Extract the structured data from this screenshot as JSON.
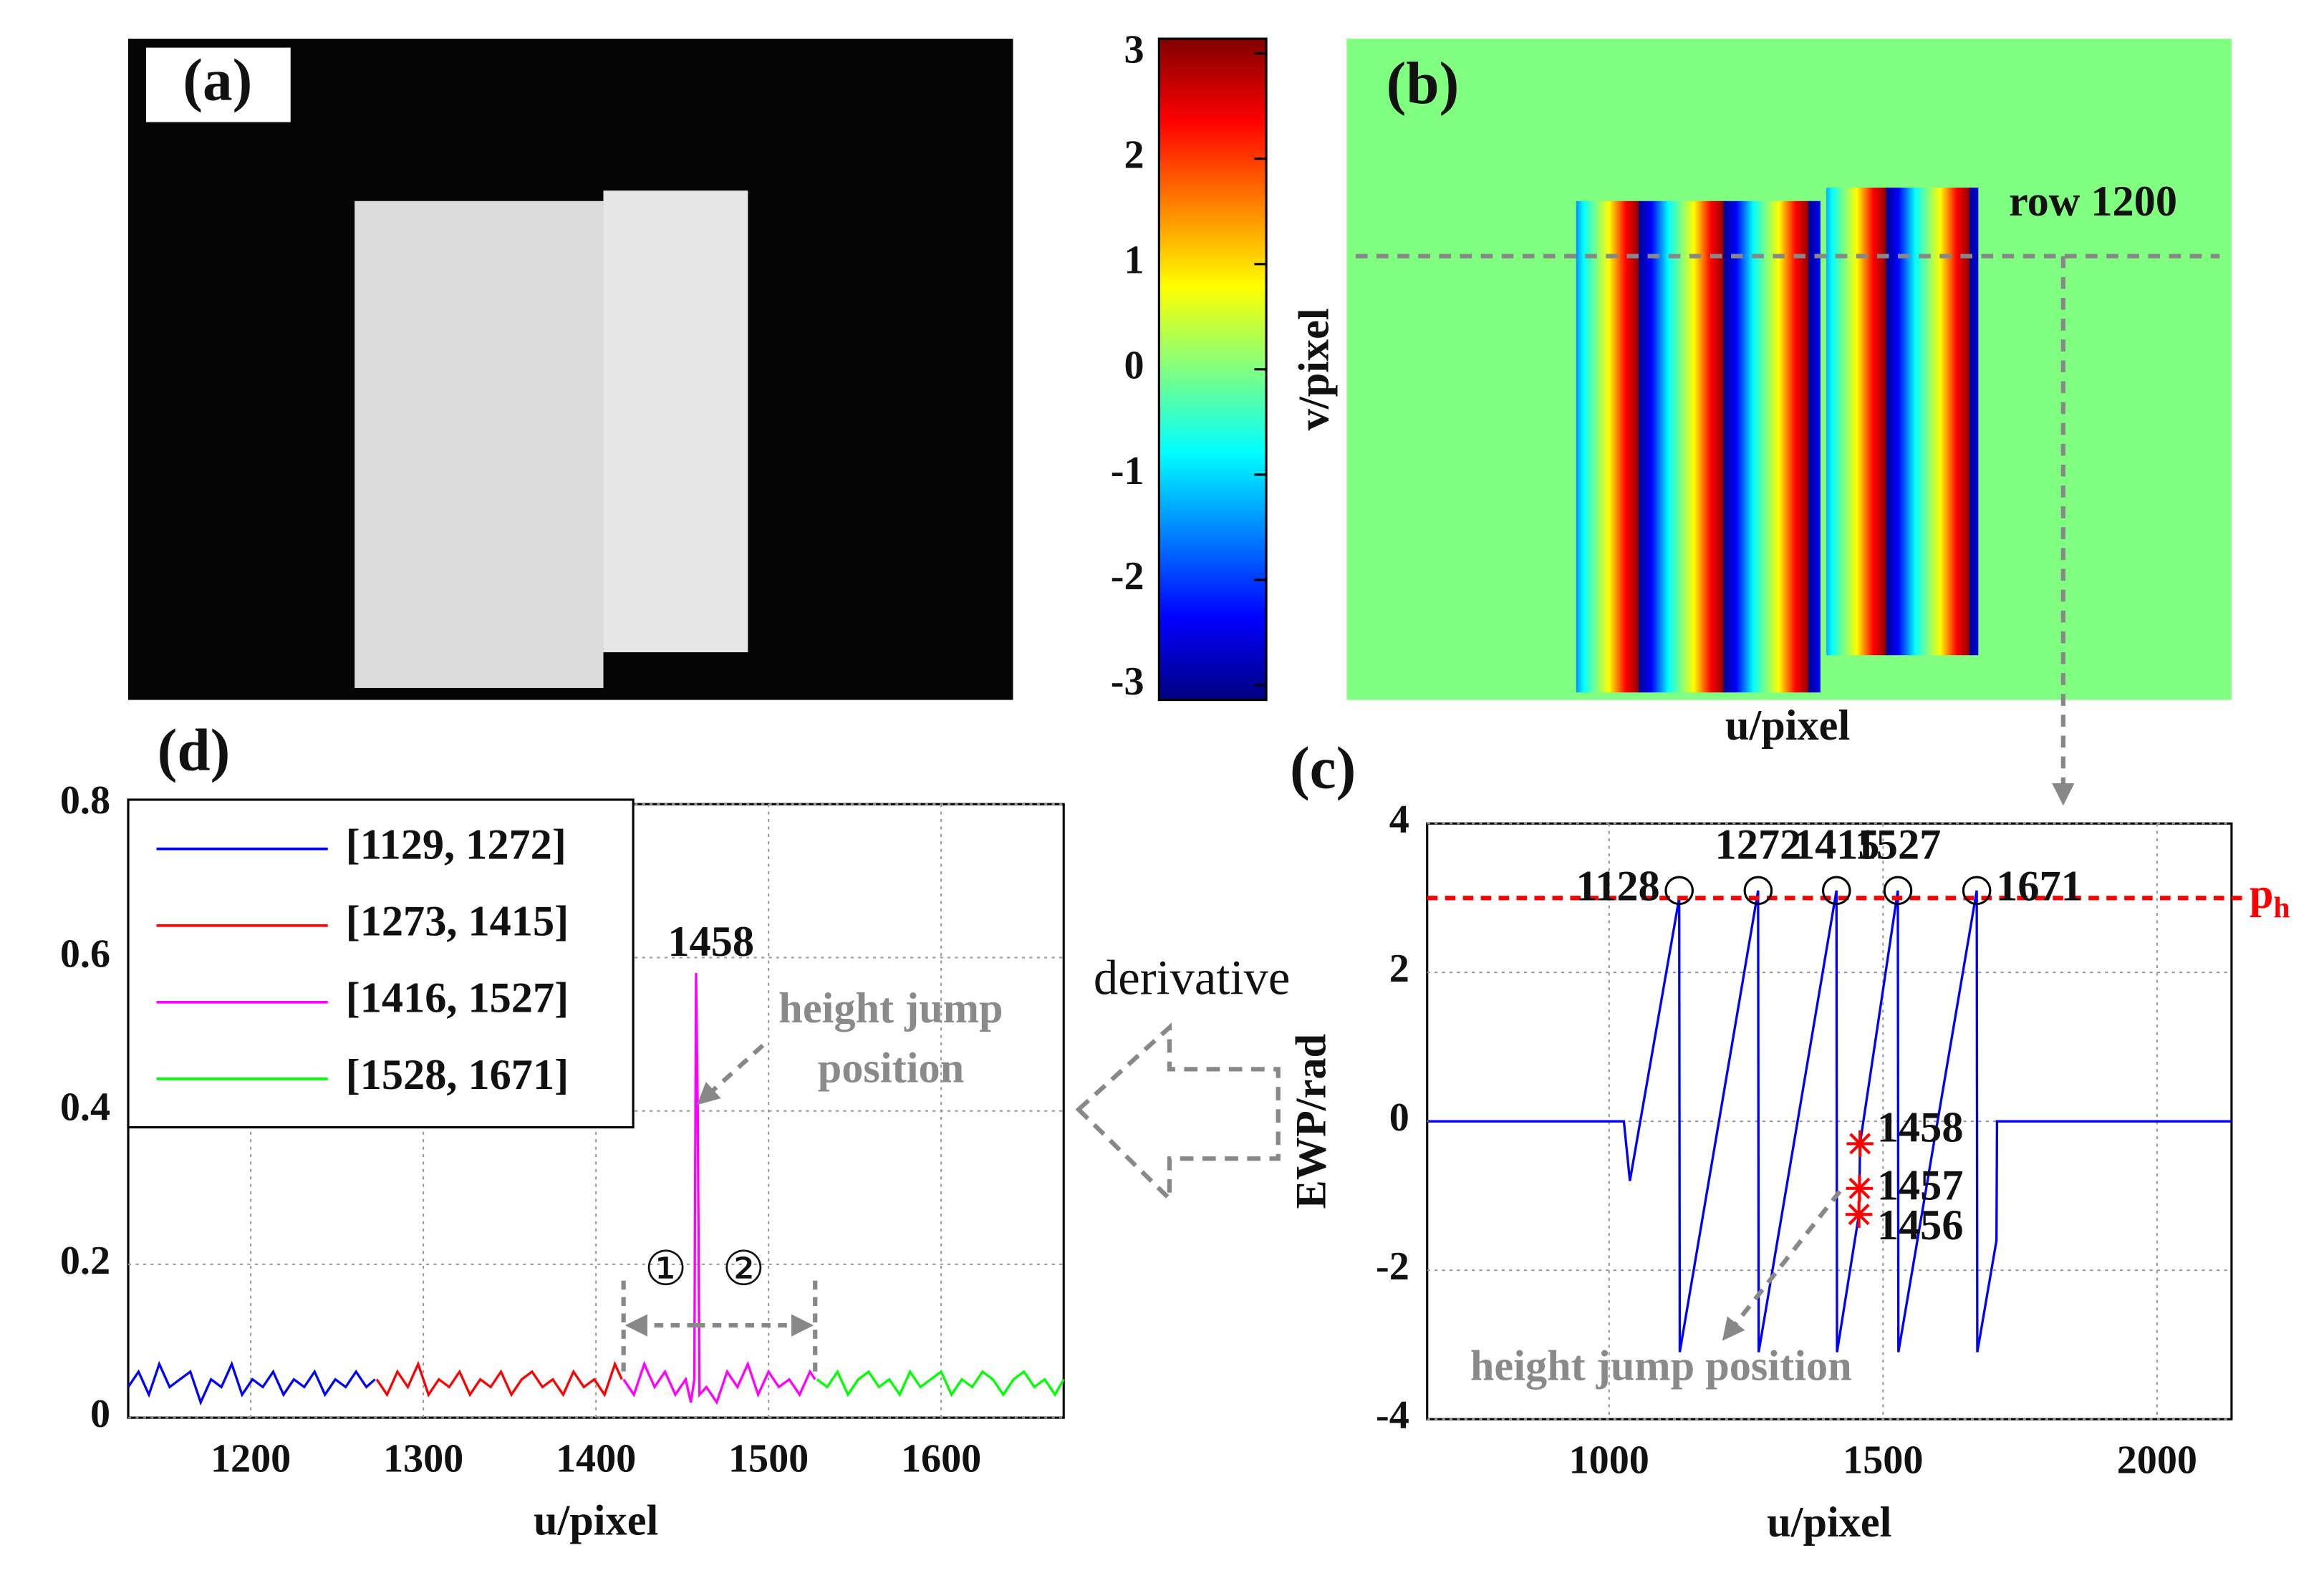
{
  "panel_a": {
    "label": "(a)"
  },
  "panel_b": {
    "label": "(b)",
    "row_label": "row 1200",
    "xlabel": "u/pixel",
    "ylabel": "v/pixel"
  },
  "colorbar": {
    "ylim": [
      -3.14,
      3.14
    ],
    "yticks": [
      3,
      2,
      1,
      0,
      -1,
      -2,
      -3
    ],
    "colormap": "jet"
  },
  "arrow_label": "derivative",
  "chart_data": [
    {
      "type": "line",
      "label": "(c)",
      "xlabel": "u/pixel",
      "ylabel": "EWP/rad",
      "xlim": [
        668,
        2136
      ],
      "ylim": [
        -4,
        4
      ],
      "xticks": [
        1000,
        1500,
        2000
      ],
      "yticks": [
        -4,
        -2,
        0,
        2,
        4
      ],
      "grid": true,
      "series": [
        {
          "color": "#0000ff",
          "x": [
            670,
            1027,
            1038,
            1128,
            1129,
            1272,
            1273,
            1415,
            1416,
            1456,
            1457,
            1458,
            1527,
            1528,
            1671,
            1672,
            1707,
            1708,
            2136
          ],
          "values": [
            0,
            0,
            -0.8,
            3.0,
            -3.1,
            3.1,
            -3.1,
            3.1,
            -3.1,
            -1.25,
            -0.9,
            -0.3,
            3.1,
            -3.1,
            3.1,
            -3.1,
            -1.6,
            0,
            0
          ]
        }
      ],
      "threshold": {
        "value": 3.0,
        "color": "#ff0000",
        "label": "p",
        "label_sub": "h"
      },
      "markers": {
        "x": [
          1128,
          1272,
          1415,
          1527,
          1671
        ],
        "values": [
          3.1,
          3.1,
          3.1,
          3.1,
          3.1
        ]
      },
      "stars": {
        "x": [
          1458,
          1457,
          1456
        ],
        "values": [
          -0.3,
          -0.9,
          -1.25
        ],
        "color": "#ff0000"
      },
      "annotation": "height jump position"
    },
    {
      "type": "line",
      "label": "(d)",
      "xlabel": "u/pixel",
      "xlim": [
        1129,
        1671
      ],
      "ylim": [
        0,
        0.8
      ],
      "xticks": [
        1200,
        1300,
        1400,
        1500,
        1600
      ],
      "yticks": [
        0,
        0.2,
        0.4,
        0.6,
        0.8
      ],
      "grid": true,
      "series": [
        {
          "name": "[1129, 1272]",
          "color": "#0000ff",
          "x": [
            1129,
            1135,
            1141,
            1147,
            1153,
            1159,
            1165,
            1171,
            1177,
            1183,
            1189,
            1195,
            1201,
            1207,
            1213,
            1219,
            1225,
            1231,
            1237,
            1243,
            1249,
            1255,
            1261,
            1267,
            1272
          ],
          "values": [
            0.04,
            0.06,
            0.03,
            0.07,
            0.04,
            0.05,
            0.06,
            0.02,
            0.05,
            0.04,
            0.07,
            0.03,
            0.05,
            0.04,
            0.06,
            0.03,
            0.05,
            0.04,
            0.06,
            0.03,
            0.05,
            0.04,
            0.06,
            0.04,
            0.05
          ]
        },
        {
          "name": "[1273, 1415]",
          "color": "#ff0000",
          "x": [
            1273,
            1279,
            1285,
            1291,
            1297,
            1303,
            1309,
            1315,
            1321,
            1327,
            1333,
            1339,
            1345,
            1351,
            1357,
            1363,
            1369,
            1375,
            1381,
            1387,
            1393,
            1399,
            1405,
            1411,
            1415
          ],
          "values": [
            0.05,
            0.03,
            0.06,
            0.04,
            0.07,
            0.03,
            0.05,
            0.04,
            0.06,
            0.03,
            0.05,
            0.04,
            0.06,
            0.03,
            0.05,
            0.06,
            0.04,
            0.05,
            0.03,
            0.06,
            0.04,
            0.05,
            0.03,
            0.07,
            0.05
          ]
        },
        {
          "name": "[1416, 1527]",
          "color": "#ff00ff",
          "x": [
            1416,
            1422,
            1428,
            1434,
            1440,
            1446,
            1452,
            1455,
            1457,
            1458,
            1459,
            1460,
            1464,
            1470,
            1476,
            1482,
            1488,
            1494,
            1500,
            1506,
            1512,
            1518,
            1524,
            1527
          ],
          "values": [
            0.05,
            0.03,
            0.07,
            0.04,
            0.06,
            0.03,
            0.05,
            0.02,
            0.05,
            0.58,
            0.4,
            0.03,
            0.04,
            0.02,
            0.06,
            0.04,
            0.07,
            0.03,
            0.06,
            0.04,
            0.05,
            0.03,
            0.06,
            0.05
          ]
        },
        {
          "name": "[1528, 1671]",
          "color": "#00ff00",
          "x": [
            1528,
            1534,
            1540,
            1546,
            1552,
            1558,
            1564,
            1570,
            1576,
            1582,
            1588,
            1594,
            1600,
            1606,
            1612,
            1618,
            1624,
            1630,
            1636,
            1642,
            1648,
            1654,
            1660,
            1666,
            1671
          ],
          "values": [
            0.05,
            0.04,
            0.06,
            0.03,
            0.05,
            0.06,
            0.04,
            0.05,
            0.03,
            0.06,
            0.04,
            0.05,
            0.06,
            0.03,
            0.05,
            0.04,
            0.06,
            0.05,
            0.03,
            0.05,
            0.06,
            0.04,
            0.05,
            0.03,
            0.05
          ]
        }
      ],
      "annotation": [
        "height jump",
        "position"
      ],
      "region_labels": [
        "①",
        "②"
      ]
    }
  ]
}
